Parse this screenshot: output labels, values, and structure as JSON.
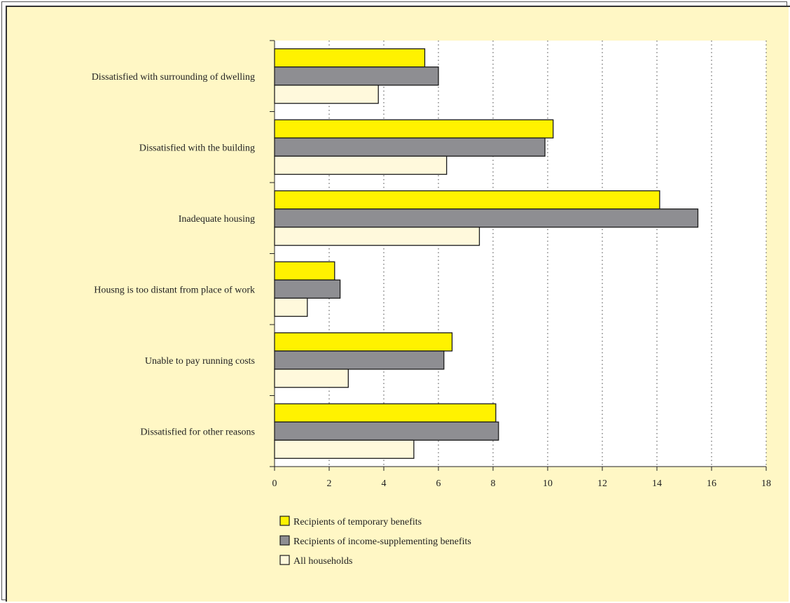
{
  "colors": {
    "background": "#fff7c5",
    "plot_area": "#ffffff",
    "bar_outline": "#1a1a1a"
  },
  "chart_data": {
    "type": "bar",
    "orientation": "horizontal",
    "title": "",
    "xlabel": "",
    "ylabel": "",
    "xlim": [
      0,
      18
    ],
    "x_ticks": [
      0,
      2,
      4,
      6,
      8,
      10,
      12,
      14,
      16,
      18
    ],
    "grid": "vertical dotted",
    "legend_position": "bottom-left",
    "categories": [
      "Dissatisfied with surrounding of dwelling",
      "Dissatisfied with the building",
      "Inadequate housing",
      "Housng is too distant from place of work",
      "Unable to pay running costs",
      "Dissatisfied for other reasons"
    ],
    "series": [
      {
        "name": "Recipients of temporary benefits",
        "color": "#fff200",
        "values": [
          5.5,
          10.2,
          14.1,
          2.2,
          6.5,
          8.1
        ]
      },
      {
        "name": "Recipients of income-supplementing benefits",
        "color": "#8e8e92",
        "values": [
          6.0,
          9.9,
          15.5,
          2.4,
          6.2,
          8.2
        ]
      },
      {
        "name": "All households",
        "color": "#fff9dc",
        "values": [
          3.8,
          6.3,
          7.5,
          1.2,
          2.7,
          5.1
        ]
      }
    ]
  }
}
